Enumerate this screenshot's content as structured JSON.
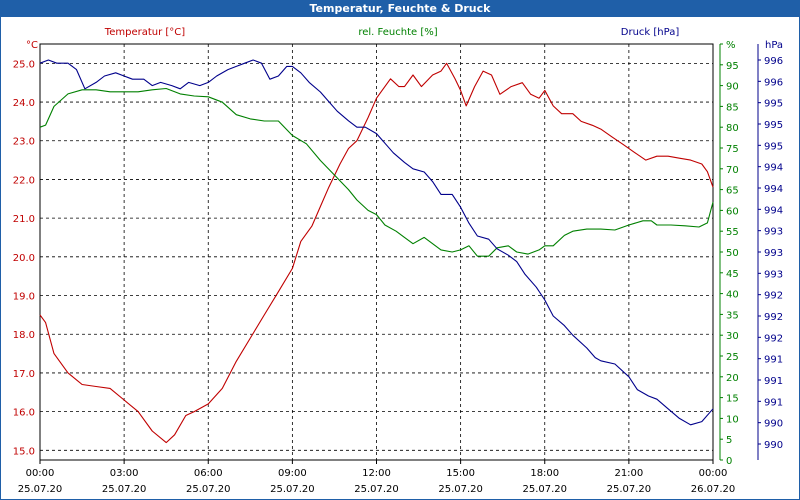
{
  "window": {
    "title": "Temperatur, Feuchte & Druck"
  },
  "chart_data": {
    "type": "line",
    "title": "Temperatur, Feuchte & Druck",
    "grid": true,
    "x_ticks": [
      {
        "time": "00:00",
        "date": "25.07.20"
      },
      {
        "time": "03:00",
        "date": "25.07.20"
      },
      {
        "time": "06:00",
        "date": "25.07.20"
      },
      {
        "time": "09:00",
        "date": "25.07.20"
      },
      {
        "time": "12:00",
        "date": "25.07.20"
      },
      {
        "time": "15:00",
        "date": "25.07.20"
      },
      {
        "time": "18:00",
        "date": "25.07.20"
      },
      {
        "time": "21:00",
        "date": "25.07.20"
      },
      {
        "time": "00:00",
        "date": "26.07.20"
      }
    ],
    "x_unit": "hour",
    "x_range": [
      0,
      24
    ],
    "axes": {
      "temperature": {
        "label": "Temperatur [°C]",
        "unit": "°C",
        "color": "#c00000",
        "range": [
          14.75,
          25.5
        ],
        "ticks": [
          "15.0",
          "16.0",
          "17.0",
          "18.0",
          "19.0",
          "20.0",
          "21.0",
          "22.0",
          "23.0",
          "24.0",
          "25.0"
        ]
      },
      "humidity": {
        "label": "rel. Feuchte [%]",
        "unit": "%",
        "color": "#008000",
        "range": [
          0,
          100
        ],
        "ticks": [
          "0",
          "5",
          "10",
          "15",
          "20",
          "25",
          "30",
          "35",
          "40",
          "45",
          "50",
          "55",
          "60",
          "65",
          "70",
          "75",
          "80",
          "85",
          "90",
          "95",
          "%"
        ]
      },
      "pressure": {
        "label": "Druck [hPa]",
        "unit": "hPa",
        "color": "#00008b",
        "range": [
          989.75,
          996.25
        ],
        "ticks": [
          "990",
          "990",
          "991",
          "991",
          "991",
          "992",
          "992",
          "992",
          "993",
          "993",
          "993",
          "994",
          "994",
          "994",
          "995",
          "995",
          "995",
          "996",
          "996"
        ]
      }
    },
    "series": [
      {
        "name": "Temperatur [°C]",
        "axis": "temperature",
        "color": "#c00000",
        "points": [
          [
            0,
            18.5
          ],
          [
            0.2,
            18.3
          ],
          [
            0.5,
            17.5
          ],
          [
            1,
            17
          ],
          [
            1.5,
            16.7
          ],
          [
            2,
            16.65
          ],
          [
            2.5,
            16.6
          ],
          [
            3,
            16.3
          ],
          [
            3.5,
            16
          ],
          [
            4,
            15.5
          ],
          [
            4.5,
            15.2
          ],
          [
            4.8,
            15.4
          ],
          [
            5.2,
            15.9
          ],
          [
            5.5,
            16
          ],
          [
            6,
            16.2
          ],
          [
            6.5,
            16.6
          ],
          [
            7,
            17.3
          ],
          [
            7.5,
            17.9
          ],
          [
            8,
            18.5
          ],
          [
            8.5,
            19.1
          ],
          [
            9,
            19.7
          ],
          [
            9.3,
            20.4
          ],
          [
            9.7,
            20.8
          ],
          [
            10,
            21.3
          ],
          [
            10.3,
            21.8
          ],
          [
            10.7,
            22.4
          ],
          [
            11,
            22.8
          ],
          [
            11.3,
            23
          ],
          [
            11.7,
            23.6
          ],
          [
            12,
            24.1
          ],
          [
            12.3,
            24.4
          ],
          [
            12.5,
            24.6
          ],
          [
            12.8,
            24.4
          ],
          [
            13,
            24.4
          ],
          [
            13.3,
            24.7
          ],
          [
            13.6,
            24.4
          ],
          [
            14,
            24.7
          ],
          [
            14.3,
            24.8
          ],
          [
            14.5,
            25
          ],
          [
            14.8,
            24.6
          ],
          [
            15,
            24.3
          ],
          [
            15.2,
            23.9
          ],
          [
            15.5,
            24.4
          ],
          [
            15.8,
            24.8
          ],
          [
            16.1,
            24.7
          ],
          [
            16.4,
            24.2
          ],
          [
            16.8,
            24.4
          ],
          [
            17.2,
            24.5
          ],
          [
            17.5,
            24.2
          ],
          [
            17.8,
            24.1
          ],
          [
            18,
            24.3
          ],
          [
            18.3,
            23.9
          ],
          [
            18.6,
            23.7
          ],
          [
            19,
            23.7
          ],
          [
            19.3,
            23.5
          ],
          [
            19.7,
            23.4
          ],
          [
            20,
            23.3
          ],
          [
            20.4,
            23.1
          ],
          [
            20.8,
            22.9
          ],
          [
            21.2,
            22.7
          ],
          [
            21.6,
            22.5
          ],
          [
            22,
            22.6
          ],
          [
            22.4,
            22.6
          ],
          [
            22.8,
            22.55
          ],
          [
            23.2,
            22.5
          ],
          [
            23.6,
            22.4
          ],
          [
            23.8,
            22.2
          ],
          [
            24,
            21.8
          ]
        ]
      },
      {
        "name": "rel. Feuchte [%]",
        "axis": "humidity",
        "color": "#008000",
        "points": [
          [
            0,
            80
          ],
          [
            0.2,
            80.5
          ],
          [
            0.5,
            85
          ],
          [
            1,
            88
          ],
          [
            1.5,
            89
          ],
          [
            2,
            89
          ],
          [
            2.5,
            88.5
          ],
          [
            3,
            88.5
          ],
          [
            3.5,
            88.5
          ],
          [
            4,
            89
          ],
          [
            4.5,
            89.3
          ],
          [
            5,
            88
          ],
          [
            5.5,
            87.5
          ],
          [
            6,
            87.3
          ],
          [
            6.5,
            86
          ],
          [
            7,
            83
          ],
          [
            7.5,
            82
          ],
          [
            8,
            81.5
          ],
          [
            8.5,
            81.5
          ],
          [
            9,
            78
          ],
          [
            9.5,
            76
          ],
          [
            10,
            72
          ],
          [
            10.5,
            68.5
          ],
          [
            11,
            65
          ],
          [
            11.3,
            62.5
          ],
          [
            11.7,
            60
          ],
          [
            12,
            59
          ],
          [
            12.3,
            56.5
          ],
          [
            12.7,
            55
          ],
          [
            13,
            53.5
          ],
          [
            13.3,
            52
          ],
          [
            13.7,
            53.5
          ],
          [
            14,
            52
          ],
          [
            14.3,
            50.5
          ],
          [
            14.7,
            50
          ],
          [
            15,
            50.5
          ],
          [
            15.3,
            51.5
          ],
          [
            15.6,
            49
          ],
          [
            16,
            49
          ],
          [
            16.3,
            51
          ],
          [
            16.7,
            51.5
          ],
          [
            17,
            50
          ],
          [
            17.4,
            49.5
          ],
          [
            17.8,
            50.5
          ],
          [
            18,
            51.5
          ],
          [
            18.3,
            51.5
          ],
          [
            18.7,
            54
          ],
          [
            19,
            55
          ],
          [
            19.5,
            55.5
          ],
          [
            20,
            55.5
          ],
          [
            20.5,
            55.3
          ],
          [
            21,
            56.5
          ],
          [
            21.5,
            57.5
          ],
          [
            21.8,
            57.5
          ],
          [
            22,
            56.5
          ],
          [
            22.5,
            56.5
          ],
          [
            23,
            56.3
          ],
          [
            23.5,
            56
          ],
          [
            23.8,
            57
          ],
          [
            24,
            62
          ]
        ]
      },
      {
        "name": "Druck [hPa]",
        "axis": "pressure",
        "color": "#00008b",
        "points": [
          [
            0,
            995.95
          ],
          [
            0.3,
            996
          ],
          [
            0.6,
            995.95
          ],
          [
            1,
            995.95
          ],
          [
            1.3,
            995.85
          ],
          [
            1.6,
            995.55
          ],
          [
            2,
            995.65
          ],
          [
            2.3,
            995.75
          ],
          [
            2.7,
            995.8
          ],
          [
            3,
            995.75
          ],
          [
            3.3,
            995.7
          ],
          [
            3.7,
            995.7
          ],
          [
            4,
            995.6
          ],
          [
            4.3,
            995.65
          ],
          [
            4.7,
            995.6
          ],
          [
            5,
            995.55
          ],
          [
            5.3,
            995.65
          ],
          [
            5.7,
            995.6
          ],
          [
            6,
            995.65
          ],
          [
            6.3,
            995.75
          ],
          [
            6.7,
            995.85
          ],
          [
            7,
            995.9
          ],
          [
            7.3,
            995.95
          ],
          [
            7.6,
            996
          ],
          [
            7.9,
            995.95
          ],
          [
            8.2,
            995.7
          ],
          [
            8.5,
            995.75
          ],
          [
            8.8,
            995.9
          ],
          [
            9,
            995.9
          ],
          [
            9.3,
            995.8
          ],
          [
            9.6,
            995.65
          ],
          [
            10,
            995.5
          ],
          [
            10.3,
            995.35
          ],
          [
            10.6,
            995.2
          ],
          [
            11,
            995.05
          ],
          [
            11.3,
            994.95
          ],
          [
            11.6,
            994.95
          ],
          [
            12,
            994.85
          ],
          [
            12.3,
            994.7
          ],
          [
            12.6,
            994.55
          ],
          [
            13,
            994.4
          ],
          [
            13.3,
            994.3
          ],
          [
            13.7,
            994.25
          ],
          [
            14,
            994.1
          ],
          [
            14.3,
            993.9
          ],
          [
            14.7,
            993.9
          ],
          [
            15,
            993.7
          ],
          [
            15.3,
            993.45
          ],
          [
            15.6,
            993.25
          ],
          [
            16,
            993.2
          ],
          [
            16.3,
            993.05
          ],
          [
            16.7,
            992.95
          ],
          [
            17,
            992.85
          ],
          [
            17.3,
            992.65
          ],
          [
            17.7,
            992.45
          ],
          [
            18,
            992.25
          ],
          [
            18.3,
            992
          ],
          [
            18.7,
            991.85
          ],
          [
            19,
            991.7
          ],
          [
            19.5,
            991.5
          ],
          [
            19.8,
            991.35
          ],
          [
            20,
            991.3
          ],
          [
            20.5,
            991.25
          ],
          [
            21,
            991.05
          ],
          [
            21.3,
            990.85
          ],
          [
            21.7,
            990.75
          ],
          [
            22,
            990.7
          ],
          [
            22.4,
            990.55
          ],
          [
            22.8,
            990.4
          ],
          [
            23.2,
            990.3
          ],
          [
            23.6,
            990.35
          ],
          [
            24,
            990.55
          ]
        ]
      }
    ]
  }
}
